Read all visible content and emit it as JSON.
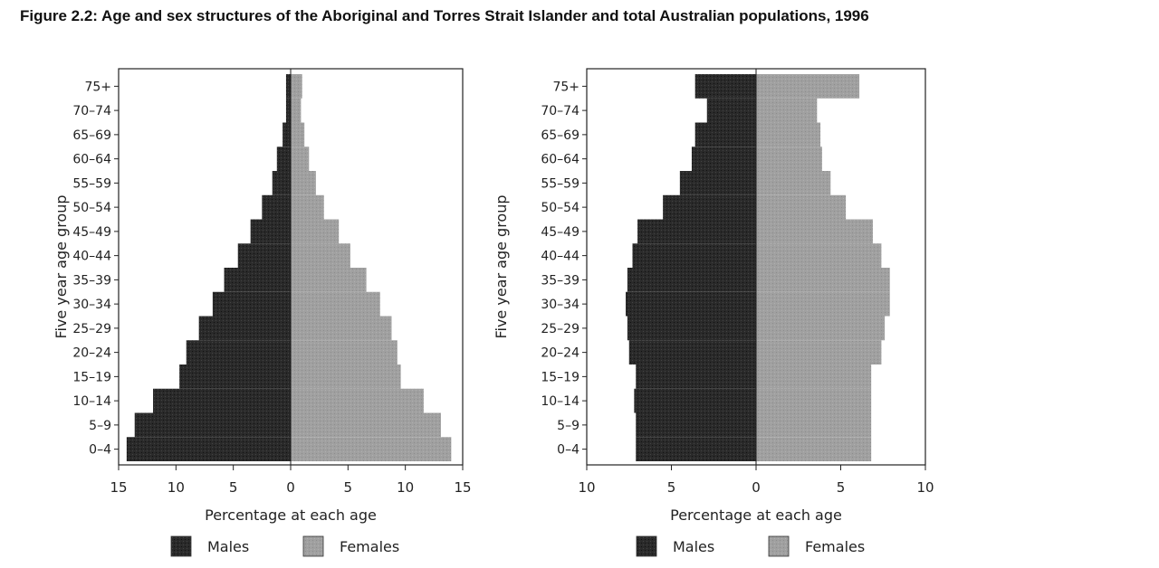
{
  "figure_title": "Figure 2.2: Age and sex structures of the Aboriginal and Torres Strait Islander and total Australian populations, 1996",
  "colors": {
    "males": "#262626",
    "females": "#9a9a9a",
    "axis": "#222222"
  },
  "chart_data": [
    {
      "type": "bar",
      "orientation": "horizontal-pyramid",
      "population": "Aboriginal and Torres Strait Islander",
      "categories": [
        "0–4",
        "5–9",
        "10–14",
        "15–19",
        "20–24",
        "25–29",
        "30–34",
        "35–39",
        "40–44",
        "45–49",
        "50–54",
        "55–59",
        "60–64",
        "65–69",
        "70–74",
        "75+"
      ],
      "series": [
        {
          "name": "Males",
          "values": [
            14.3,
            13.6,
            12.0,
            9.7,
            9.1,
            8.0,
            6.8,
            5.8,
            4.6,
            3.5,
            2.5,
            1.6,
            1.2,
            0.7,
            0.4,
            0.4
          ]
        },
        {
          "name": "Females",
          "values": [
            14.0,
            13.1,
            11.6,
            9.6,
            9.3,
            8.8,
            7.8,
            6.6,
            5.2,
            4.2,
            2.9,
            2.2,
            1.6,
            1.2,
            0.9,
            1.0
          ]
        }
      ],
      "xlim": [
        -15,
        15
      ],
      "xticks": [
        -15,
        -10,
        -5,
        0,
        5,
        10,
        15
      ],
      "xtick_labels": [
        "15",
        "10",
        "5",
        "0",
        "5",
        "10",
        "15"
      ],
      "xlabel": "Percentage at each age",
      "ylabel": "Five year age group",
      "legend": [
        "Males",
        "Females"
      ],
      "legend_position": "bottom"
    },
    {
      "type": "bar",
      "orientation": "horizontal-pyramid",
      "population": "Total Australian",
      "categories": [
        "0–4",
        "5–9",
        "10–14",
        "15–19",
        "20–24",
        "25–29",
        "30–34",
        "35–39",
        "40–44",
        "45–49",
        "50–54",
        "55–59",
        "60–64",
        "65–69",
        "70–74",
        "75+"
      ],
      "series": [
        {
          "name": "Males",
          "values": [
            7.1,
            7.1,
            7.2,
            7.1,
            7.5,
            7.6,
            7.7,
            7.6,
            7.3,
            7.0,
            5.5,
            4.5,
            3.8,
            3.6,
            2.9,
            3.6
          ]
        },
        {
          "name": "Females",
          "values": [
            6.8,
            6.8,
            6.8,
            6.8,
            7.4,
            7.6,
            7.9,
            7.9,
            7.4,
            6.9,
            5.3,
            4.4,
            3.9,
            3.8,
            3.6,
            6.1
          ]
        }
      ],
      "xlim": [
        -10,
        10
      ],
      "xticks": [
        -10,
        -5,
        0,
        5,
        10
      ],
      "xtick_labels": [
        "10",
        "5",
        "0",
        "5",
        "10"
      ],
      "xlabel": "Percentage at each age",
      "ylabel": "Five year age group",
      "legend": [
        "Males",
        "Females"
      ],
      "legend_position": "bottom"
    }
  ]
}
